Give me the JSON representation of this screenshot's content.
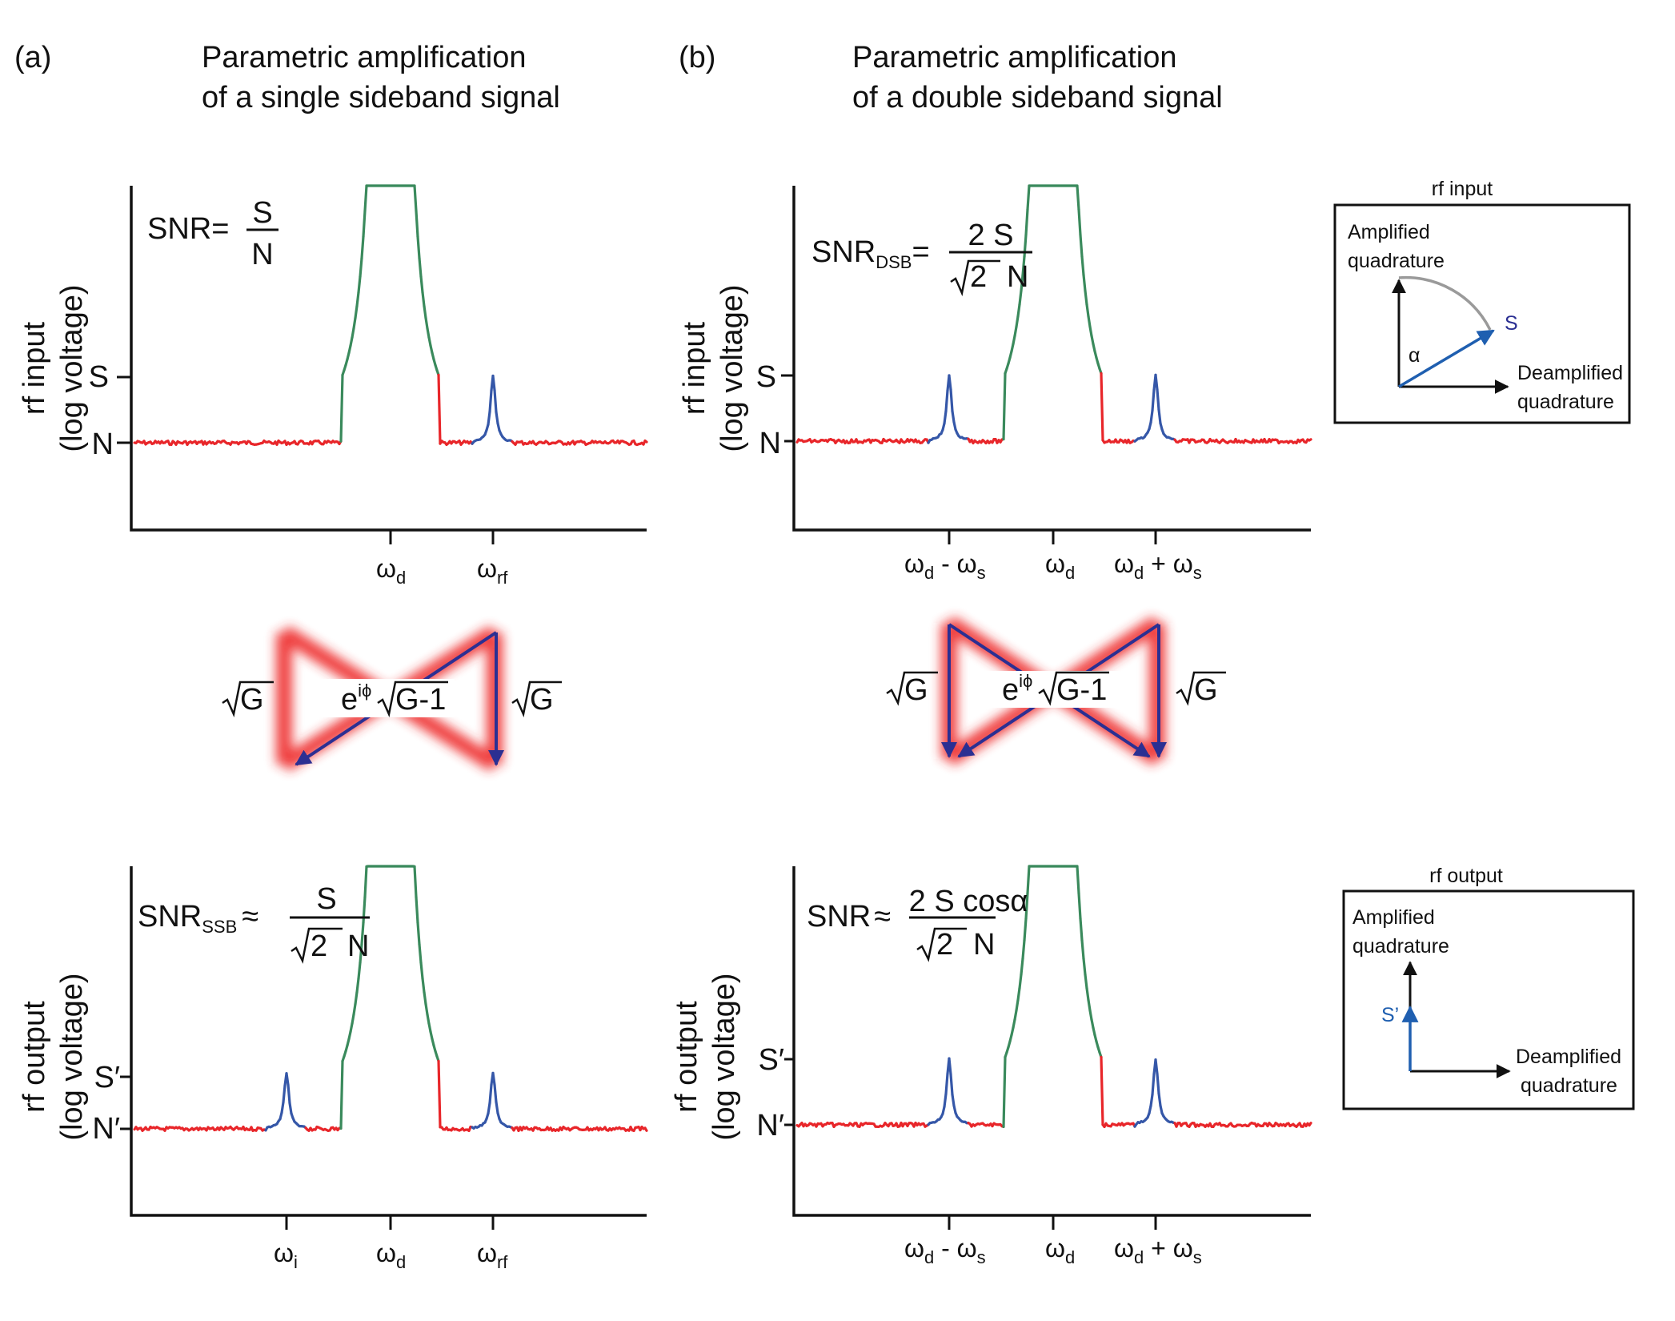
{
  "panel_a": {
    "label": "(a)",
    "title_line1": "Parametric amplification",
    "title_line2": "of a single sideband signal",
    "input": {
      "ylabel_line1": "rf input",
      "ylabel_line2": "(log voltage)",
      "level_signal": "S",
      "level_noise": "N",
      "snr_prefix": "SNR=",
      "snr_num": "S",
      "snr_den": "N",
      "ticks": [
        {
          "base": "ω",
          "sub": "d"
        },
        {
          "base": "ω",
          "sub": "rf"
        }
      ]
    },
    "gain": {
      "direct_left": "G",
      "direct_right": "G",
      "cross_prefix": "e",
      "cross_sup": "iϕ",
      "cross_root": "G-1"
    },
    "output": {
      "ylabel_line1": "rf output",
      "ylabel_line2": "(log voltage)",
      "level_signal": "S′",
      "level_noise": "N′",
      "snr_prefix": "SNR",
      "snr_sub": "SSB",
      "snr_approx": "≈",
      "snr_num": "S",
      "snr_den_root": "2",
      "snr_den_tail": "N",
      "ticks": [
        {
          "base": "ω",
          "sub": "i"
        },
        {
          "base": "ω",
          "sub": "d"
        },
        {
          "base": "ω",
          "sub": "rf"
        }
      ]
    }
  },
  "panel_b": {
    "label": "(b)",
    "title_line1": "Parametric amplification",
    "title_line2": "of a double sideband signal",
    "input": {
      "ylabel_line1": "rf input",
      "ylabel_line2": "(log voltage)",
      "level_signal": "S",
      "level_noise": "N",
      "snr_prefix": "SNR",
      "snr_sub": "DSB",
      "snr_eq": "=",
      "snr_num": "2 S",
      "snr_den_root": "2",
      "snr_den_tail": "N",
      "ticks": [
        {
          "base": "ω",
          "sub": "d",
          "tail": " - ω",
          "tail_sub": "s"
        },
        {
          "base": "ω",
          "sub": "d"
        },
        {
          "base": "ω",
          "sub": "d",
          "tail": " + ω",
          "tail_sub": "s"
        }
      ]
    },
    "gain": {
      "direct_left": "G",
      "direct_right": "G",
      "cross_prefix": "e",
      "cross_sup": "iϕ",
      "cross_root": "G-1"
    },
    "output": {
      "ylabel_line1": "rf output",
      "ylabel_line2": "(log voltage)",
      "level_signal": "S′",
      "level_noise": "N′",
      "snr_prefix": "SNR",
      "snr_approx": "≈",
      "snr_num": "2 S cosα",
      "snr_den_root": "2",
      "snr_den_tail": "N",
      "ticks": [
        {
          "base": "ω",
          "sub": "d",
          "tail": " - ω",
          "tail_sub": "s"
        },
        {
          "base": "ω",
          "sub": "d"
        },
        {
          "base": "ω",
          "sub": "d",
          "tail": " + ω",
          "tail_sub": "s"
        }
      ]
    }
  },
  "inset_input": {
    "title": "rf input",
    "amp_line1": "Amplified",
    "amp_line2": "quadrature",
    "deamp_line1": "Deamplified",
    "deamp_line2": "quadrature",
    "vector_label": "S",
    "angle_label": "α"
  },
  "inset_output": {
    "title": "rf output",
    "amp_line1": "Amplified",
    "amp_line2": "quadrature",
    "deamp_line1": "Deamplified",
    "deamp_line2": "quadrature",
    "vector_label": "S’"
  },
  "colors": {
    "noise": "#e8262a",
    "pump": "#3a8a5c",
    "signal": "#3557a8",
    "arrow": "#2b2f92",
    "glow": "#ee2a2a",
    "vector": "#1f5fb0",
    "arc": "#9a9a9a",
    "axis": "#111111"
  }
}
